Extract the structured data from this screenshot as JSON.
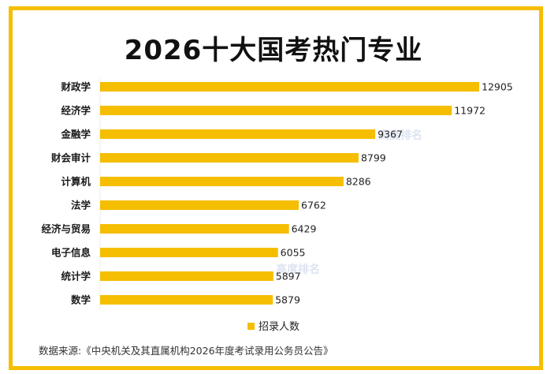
{
  "chart_data": {
    "type": "bar",
    "orientation": "horizontal",
    "title": "2026十大国考热门专业",
    "categories": [
      "财政学",
      "经济学",
      "金融学",
      "财会审计",
      "计算机",
      "法学",
      "经济与贸易",
      "电子信息",
      "统计学",
      "数学"
    ],
    "series": [
      {
        "name": "招录人数",
        "values": [
          12905,
          11972,
          9367,
          8799,
          8286,
          6762,
          6429,
          6055,
          5897,
          5879
        ],
        "color": "#F5BE00"
      }
    ],
    "xlabel": "",
    "ylabel": "",
    "xlim": [
      0,
      12905
    ],
    "grid": false,
    "legend": {
      "entries": [
        "招录人数"
      ],
      "placement": "bottom-center"
    },
    "data_labels": true,
    "source_note": "数据来源:《中央机关及其直属机构2026年度考试录用公务员公告》",
    "watermark": "高度排名"
  },
  "colors": {
    "frame": "#F5BE00",
    "bar": "#F5BE00",
    "title": "#111111"
  }
}
